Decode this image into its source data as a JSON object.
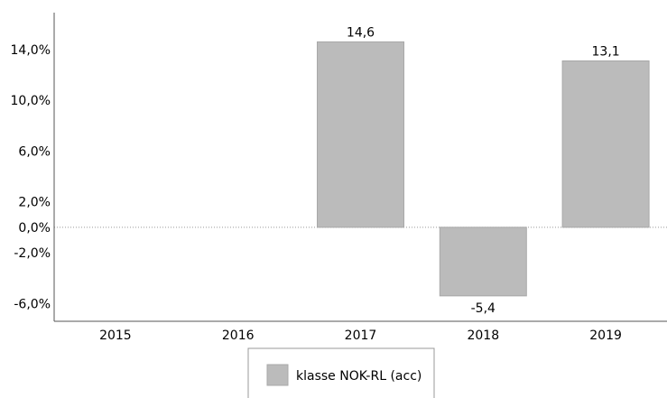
{
  "chart_data": {
    "type": "bar",
    "categories": [
      "2015",
      "2016",
      "2017",
      "2018",
      "2019"
    ],
    "series": [
      {
        "name": "klasse NOK-RL (acc)",
        "values": [
          null,
          null,
          14.6,
          -5.4,
          13.1
        ],
        "color": "#bbbbbb",
        "value_labels": [
          "",
          "",
          "14,6",
          "-5,4",
          "13,1"
        ]
      }
    ],
    "yticks": [
      {
        "value": 14,
        "label": "14,0%"
      },
      {
        "value": 10,
        "label": "10,0%"
      },
      {
        "value": 6,
        "label": "6,0%"
      },
      {
        "value": 2,
        "label": "2,0%"
      },
      {
        "value": 0,
        "label": "0,0%"
      },
      {
        "value": -2,
        "label": "-2,0%"
      },
      {
        "value": -6,
        "label": "-6,0%"
      }
    ],
    "ylim": [
      -7.4,
      16.9
    ],
    "title": "",
    "xlabel": "",
    "ylabel": "",
    "grid": false,
    "zero_line": "dotted",
    "legend_position": "bottom-center"
  }
}
